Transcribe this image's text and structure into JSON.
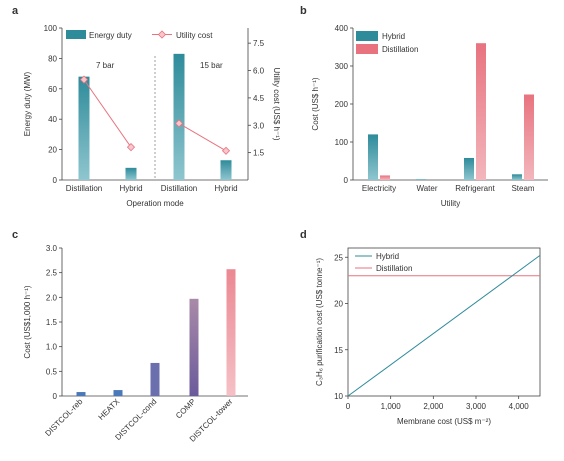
{
  "colors": {
    "hybrid": "#2e8b9a",
    "hybrid_light": "#8fc6cf",
    "distillation": "#e8737f",
    "distillation_light": "#f3b6bc",
    "purple": "#6b5a9b",
    "mauve": "#a98aa8",
    "axis": "#444444"
  },
  "chart_data": [
    {
      "panel": "a",
      "type": "bar",
      "categories": [
        "Distillation",
        "Hybrid",
        "Distillation",
        "Hybrid"
      ],
      "groups": [
        "7 bar",
        "15 bar"
      ],
      "series": [
        {
          "name": "Energy duty",
          "axis": "left",
          "values": [
            68,
            8,
            83,
            13
          ]
        },
        {
          "name": "Utility cost",
          "axis": "right",
          "kind": "line",
          "values": [
            5.5,
            1.8,
            3.1,
            1.6
          ]
        }
      ],
      "xlabel": "Operation mode",
      "ylabel": "Energy duty (MW)",
      "y2label": "Utility cost (US$ h⁻¹)",
      "ylim": [
        0,
        100
      ],
      "y2lim": [
        0,
        8.33
      ],
      "yticks": [
        "0",
        "20",
        "40",
        "60",
        "80",
        "100"
      ],
      "y2ticks": [
        "1.5",
        "3.0",
        "4.5",
        "6.0",
        "7.5"
      ],
      "legend": "top"
    },
    {
      "panel": "b",
      "type": "bar",
      "categories": [
        "Electricity",
        "Water",
        "Refrigerant",
        "Steam"
      ],
      "series": [
        {
          "name": "Hybrid",
          "values": [
            120,
            2,
            58,
            15
          ]
        },
        {
          "name": "Distillation",
          "values": [
            12,
            0,
            360,
            225
          ]
        }
      ],
      "xlabel": "Utility",
      "ylabel": "Cost (US$ h⁻¹)",
      "ylim": [
        0,
        400
      ],
      "yticks": [
        "0",
        "100",
        "200",
        "300",
        "400"
      ],
      "legend": "top-left"
    },
    {
      "panel": "c",
      "type": "bar",
      "categories": [
        "DISTCOL-reb",
        "HEATX",
        "DISTCOL-cond",
        "COMP",
        "DISTCOL-tower"
      ],
      "values": [
        0.08,
        0.12,
        0.67,
        1.97,
        2.57
      ],
      "ylabel": "Cost (US$1,000 h⁻¹)",
      "ylim": [
        0,
        3.0
      ],
      "yticks": [
        "0",
        "0.5",
        "1.0",
        "1.5",
        "2.0",
        "2.5",
        "3.0"
      ]
    },
    {
      "panel": "d",
      "type": "line",
      "series": [
        {
          "name": "Hybrid",
          "x": [
            0,
            4500
          ],
          "y": [
            10,
            25.2
          ]
        },
        {
          "name": "Distillation",
          "x": [
            0,
            4500
          ],
          "y": [
            23,
            23
          ]
        }
      ],
      "xlabel": "Membrane cost (US$ m⁻²)",
      "ylabel": "C₃H₆ purification cost (US$ tonne⁻¹)",
      "xlim": [
        0,
        4500
      ],
      "ylim": [
        10,
        26
      ],
      "xticks": [
        "0",
        "1,000",
        "2,000",
        "3,000",
        "4,000"
      ],
      "yticks": [
        "10",
        "15",
        "20",
        "25"
      ],
      "legend": "top-left"
    }
  ]
}
